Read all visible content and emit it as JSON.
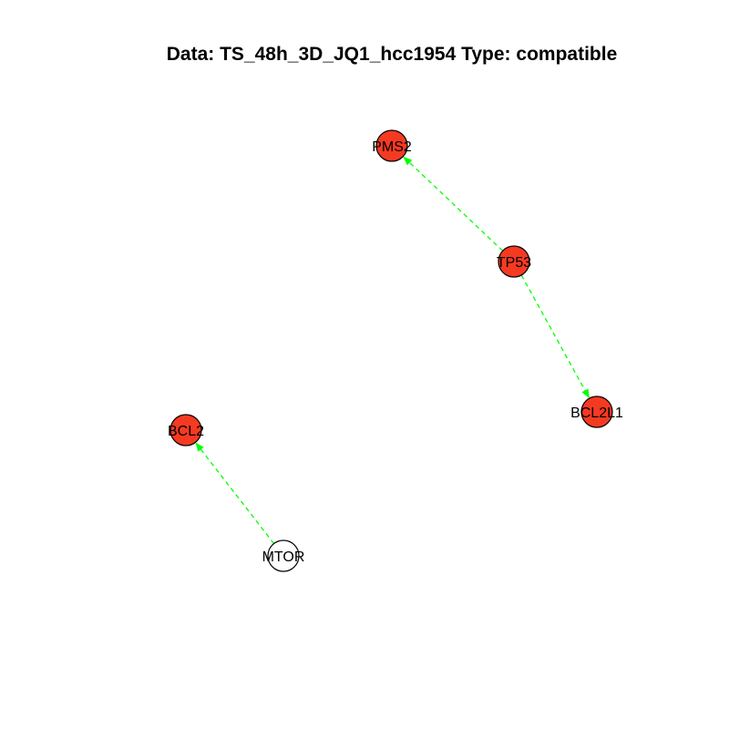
{
  "title": "Data: TS_48h_3D_JQ1_hcc1954 Type: compatible",
  "colors": {
    "active_node": "#f53a22",
    "inactive_node": "#ffffff",
    "node_stroke": "#000000",
    "edge": "#00ff00",
    "label": "#000000"
  },
  "nodes": [
    {
      "id": "PMS2",
      "label": "PMS2",
      "state": "active"
    },
    {
      "id": "TP53",
      "label": "TP53",
      "state": "active"
    },
    {
      "id": "BCL2L1",
      "label": "BCL2L1",
      "state": "active"
    },
    {
      "id": "BCL2",
      "label": "BCL2",
      "state": "active"
    },
    {
      "id": "MTOR",
      "label": "MTOR",
      "state": "inactive"
    }
  ],
  "edges": [
    {
      "source": "TP53",
      "target": "PMS2",
      "style": "dashed",
      "arrow": true
    },
    {
      "source": "TP53",
      "target": "BCL2L1",
      "style": "dashed",
      "arrow": true
    },
    {
      "source": "MTOR",
      "target": "BCL2",
      "style": "dashed",
      "arrow": true
    }
  ]
}
